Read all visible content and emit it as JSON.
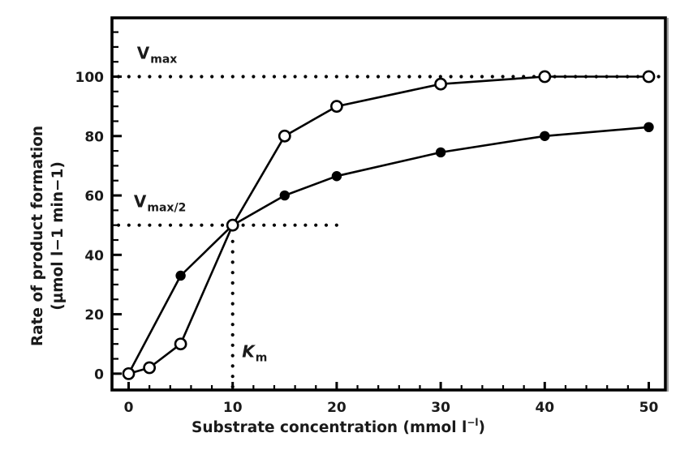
{
  "chart_data": {
    "type": "line",
    "title": "",
    "xlabel": "Substrate concentration (mmol  l",
    "xlabel_sup": "−l",
    "xlabel_close": ")",
    "ylabel_line1": "Rate of product formation",
    "ylabel_line2": "(µmol l−1 min−1)",
    "xlim": [
      -1.6,
      51.6
    ],
    "ylim": [
      -5.5,
      119.8
    ],
    "xticks_major": [
      0,
      10,
      20,
      30,
      40,
      50
    ],
    "xticks_minor_step": 2,
    "yticks_major": [
      0,
      20,
      40,
      60,
      80,
      100
    ],
    "yticks_minor_step": 5,
    "grid": false,
    "legend": "none",
    "series": [
      {
        "name": "open-circles",
        "marker": "open-circle",
        "x": [
          0,
          2,
          5,
          10,
          15,
          20,
          30,
          40,
          50
        ],
        "y": [
          0,
          2,
          10,
          50,
          80,
          90,
          97.5,
          100,
          100
        ]
      },
      {
        "name": "filled-circles",
        "marker": "filled-circle",
        "x": [
          0,
          5,
          10,
          15,
          20,
          30,
          40,
          50
        ],
        "y": [
          0,
          33,
          50,
          60,
          66.5,
          74.5,
          80,
          83
        ]
      }
    ],
    "reference_lines": [
      {
        "name": "vmax-line",
        "orientation": "horizontal",
        "y": 100,
        "x_from": -1.6,
        "x_to": 52
      },
      {
        "name": "vmax-half-line",
        "orientation": "horizontal",
        "y": 50,
        "x_from": -1.6,
        "x_to": 20
      },
      {
        "name": "km-line",
        "orientation": "vertical",
        "x": 10,
        "y_from": -5.5,
        "y_to": 50
      }
    ],
    "annotations": [
      {
        "name": "vmax-label",
        "main": "V",
        "sub": "max",
        "x": 0.8,
        "y": 106
      },
      {
        "name": "vmax-half-label",
        "main": "V",
        "sub": "max/2",
        "x": 0.5,
        "y": 56
      },
      {
        "name": "km-label",
        "main": "K",
        "sub": "m",
        "x": 10.9,
        "y": 5.5,
        "italic": true
      }
    ]
  },
  "colors": {
    "ink": "#000000",
    "background": "#ffffff",
    "frame_shadow": "#a0a0a0"
  }
}
